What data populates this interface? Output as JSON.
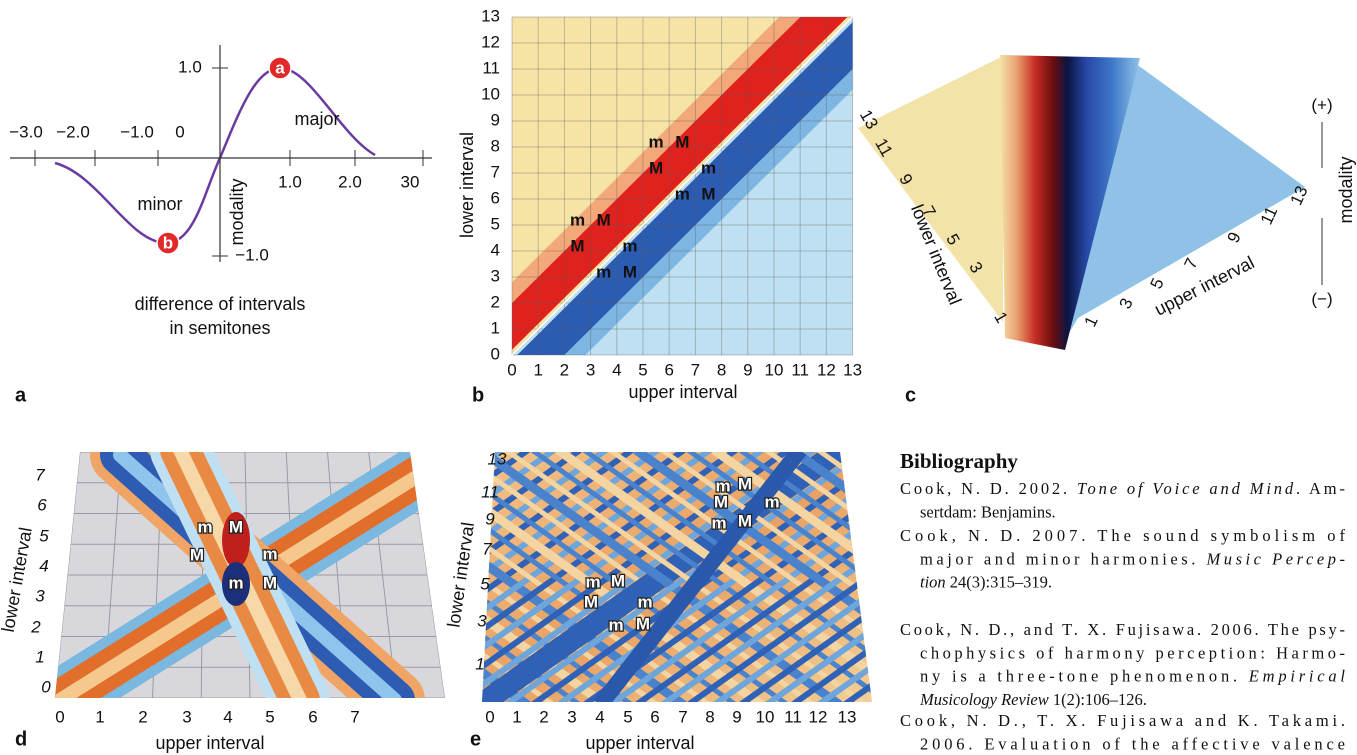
{
  "panels": {
    "a": {
      "label": "a",
      "x_ticks": [
        "−3.0",
        "−2.0",
        "−1.0",
        "0",
        "1.0",
        "2.0",
        "30"
      ],
      "y_ticks": [
        "1.0",
        "−1.0"
      ],
      "y_axis": "modality",
      "regions": [
        "major",
        "minor"
      ],
      "markers": [
        "a",
        "b"
      ],
      "caption": [
        "difference of intervals",
        "in semitones"
      ]
    },
    "b": {
      "label": "b",
      "x_axis": "upper interval",
      "y_axis": "lower interval",
      "x_ticks": [
        0,
        1,
        2,
        3,
        4,
        5,
        6,
        7,
        8,
        9,
        10,
        11,
        12,
        13
      ],
      "y_ticks": [
        0,
        1,
        2,
        3,
        4,
        5,
        6,
        7,
        8,
        9,
        10,
        11,
        12,
        13
      ],
      "chords": [
        "m",
        "M",
        "M",
        "m",
        "m",
        "M",
        "m",
        "M",
        "M",
        "m",
        "m",
        "M"
      ]
    },
    "c": {
      "label": "c",
      "x_axis": "upper interval",
      "y_axis": "lower interval",
      "z_axis": "modality",
      "x_ticks": [
        1,
        3,
        5,
        7,
        9,
        11,
        13
      ],
      "y_ticks": [
        13,
        11,
        9,
        7,
        5,
        3,
        1
      ],
      "z_ticks": [
        "(+)",
        "(−)"
      ]
    },
    "d": {
      "label": "d",
      "x_axis": "upper interval",
      "y_axis": "lower interval",
      "x_ticks": [
        0,
        1,
        2,
        3,
        4,
        5,
        6,
        7
      ],
      "y_ticks": [
        0,
        1,
        2,
        3,
        4,
        5,
        6,
        7
      ],
      "chords": [
        "m",
        "M",
        "M",
        "m",
        "m",
        "M"
      ]
    },
    "e": {
      "label": "e",
      "x_axis": "upper interval",
      "y_axis": "lower interval",
      "x_ticks": [
        0,
        1,
        2,
        3,
        4,
        5,
        6,
        7,
        8,
        9,
        10,
        11,
        12,
        13
      ],
      "y_ticks": [
        13,
        11,
        9,
        7,
        5,
        3,
        1
      ],
      "chords": [
        "m",
        "M",
        "M",
        "m",
        "m",
        "M",
        "m",
        "M",
        "M",
        "m",
        "m",
        "M"
      ]
    }
  },
  "bibliography": {
    "title": "Bibliography",
    "entries": [
      [
        [
          {
            "text": "Cook, N. D. 2002. "
          },
          {
            "text": "Tone of Voice and Mind",
            "italic": true
          },
          {
            "text": ". Am-"
          }
        ],
        [
          {
            "text": "sertdam: Benjamins."
          }
        ]
      ],
      [
        [
          {
            "text": "Cook, N. D. 2007. The sound symbolism of"
          }
        ],
        [
          {
            "text": "major and minor harmonies. "
          },
          {
            "text": "Music Percep-",
            "italic": true
          }
        ],
        [
          {
            "text": "tion",
            "italic": true
          },
          {
            "text": " 24(3):315–319."
          }
        ]
      ],
      [
        [
          {
            "text": "Cook, N. D., and T. X. Fujisawa. 2006. The psy-"
          }
        ],
        [
          {
            "text": "chophysics of harmony perception: Harmo-"
          }
        ],
        [
          {
            "text": "ny is a three-tone phenomenon. "
          },
          {
            "text": "Empirical",
            "italic": true
          }
        ],
        [
          {
            "text": "Musicology Review",
            "italic": true
          },
          {
            "text": " 1(2):106–126."
          }
        ]
      ],
      [
        [
          {
            "text": "Cook, N. D., T. X. Fujisawa and K. Takami."
          }
        ],
        [
          {
            "text": "2006. Evaluation of the affective valence"
          }
        ]
      ]
    ]
  }
}
